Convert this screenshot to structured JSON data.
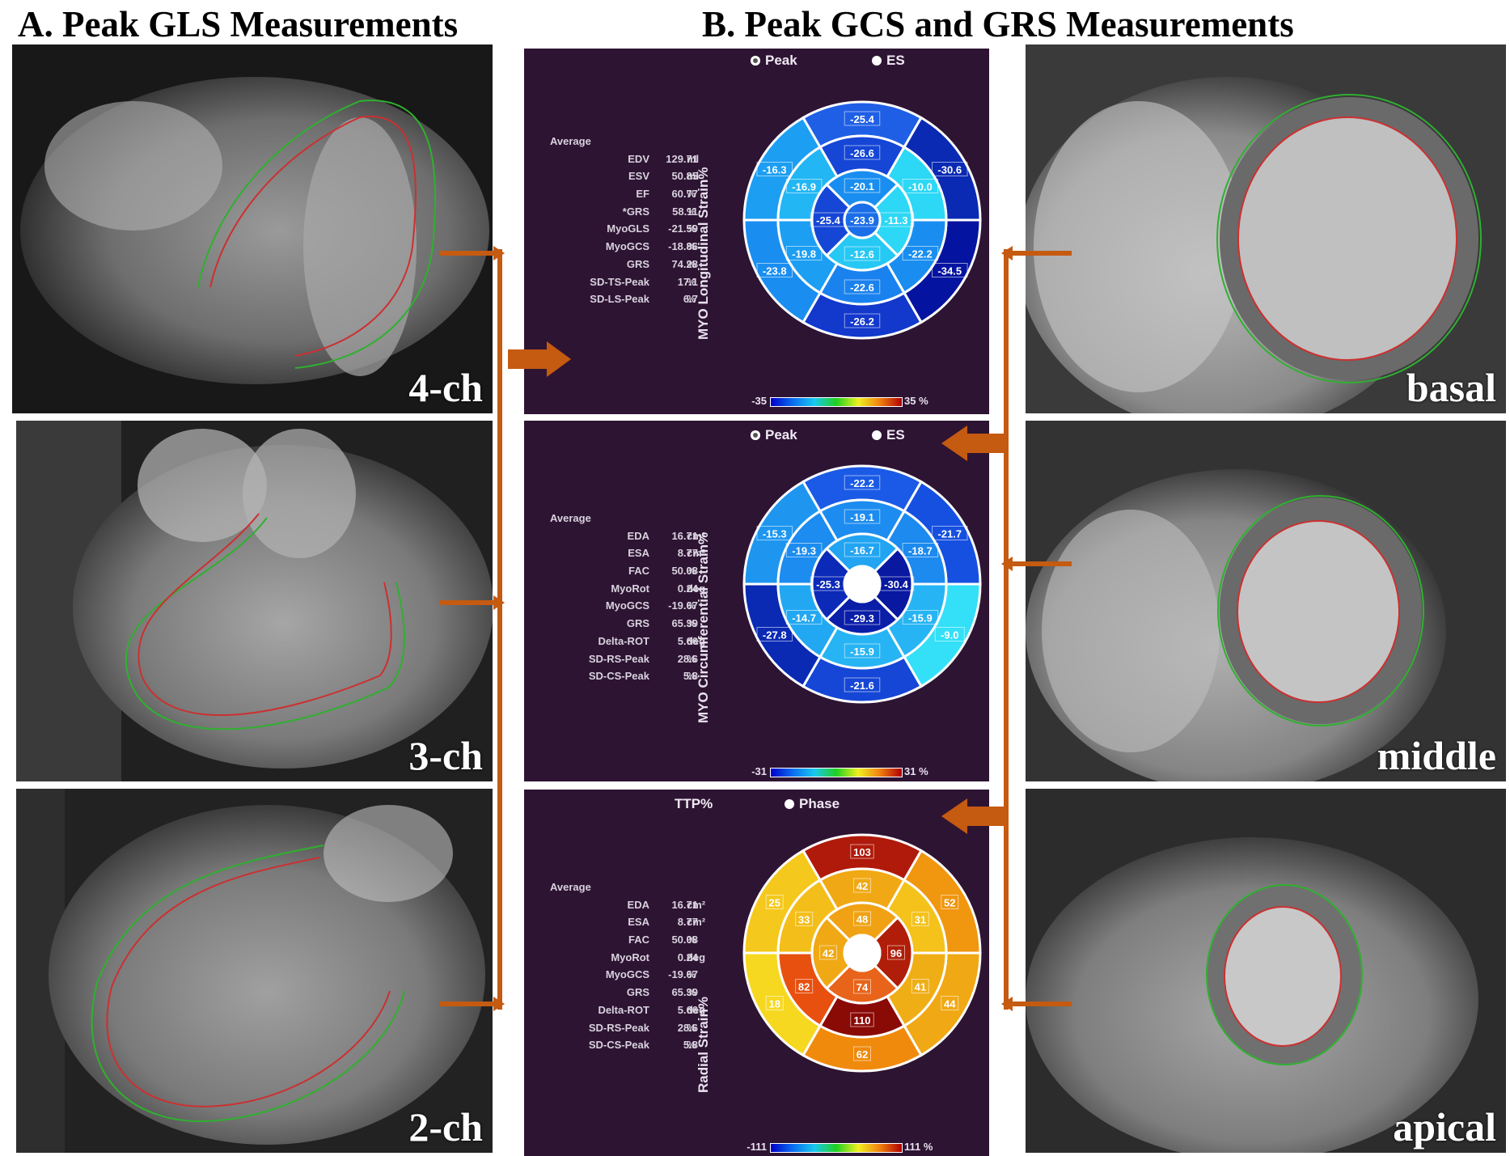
{
  "headings": {
    "a": "A.  Peak GLS Measurements",
    "b": "B.  Peak GCS and GRS Measurements"
  },
  "long_axis_views": [
    {
      "label": "4-ch"
    },
    {
      "label": "3-ch"
    },
    {
      "label": "2-ch"
    }
  ],
  "short_axis_views": [
    {
      "label": "basal"
    },
    {
      "label": "middle"
    },
    {
      "label": "apical"
    }
  ],
  "colors": {
    "panel_background": "#2e1433",
    "arrow": "#c55a11",
    "endocardium_contour": "#d03030",
    "epicardium_contour": "#30b030"
  },
  "panels": [
    {
      "radio": {
        "option1": "Peak",
        "option2": "ES",
        "selected": "Peak"
      },
      "title": "MYO Longitudinal Strain%",
      "stats_header": "Average",
      "stats": [
        {
          "label": "EDV",
          "value": "129.71",
          "unit": "ml"
        },
        {
          "label": "ESV",
          "value": "50.85",
          "unit": "ml"
        },
        {
          "label": "EF",
          "value": "60.77",
          "unit": "%"
        },
        {
          "label": "*GRS",
          "value": "58.11",
          "unit": "%"
        },
        {
          "label": "MyoGLS",
          "value": "-21.59",
          "unit": "%"
        },
        {
          "label": "MyoGCS",
          "value": "-18.86",
          "unit": "%"
        },
        {
          "label": "GRS",
          "value": "74.28",
          "unit": "%"
        },
        {
          "label": "SD-TS-Peak",
          "value": "17.1",
          "unit": "%"
        },
        {
          "label": "SD-LS-Peak",
          "value": "6.7",
          "unit": "%"
        }
      ],
      "scale": {
        "min": "-35",
        "max": "35 %"
      },
      "bullseye": {
        "basal": [
          "-25.4",
          "-30.6",
          "-34.5",
          "-26.2",
          "-23.8",
          "-16.3"
        ],
        "mid": [
          "-26.6",
          "-10.0",
          "-22.2",
          "-22.6",
          "-19.8",
          "-16.9"
        ],
        "apical": [
          "-20.1",
          "-11.3",
          "-12.6",
          "-25.4"
        ],
        "apex": "-23.9",
        "basal_colors": [
          "#1f5fe6",
          "#0a2ab4",
          "#0514a0",
          "#1238cc",
          "#1a8ef0",
          "#1c9ef2"
        ],
        "mid_colors": [
          "#1546d6",
          "#2cd8f5",
          "#1a8ef0",
          "#1a82ee",
          "#1c9ef2",
          "#22b6f4"
        ],
        "apical_colors": [
          "#1a8ef0",
          "#2cd8f5",
          "#26c8f4",
          "#1546d6"
        ],
        "apex_color": "#1a6ee8"
      }
    },
    {
      "radio": {
        "option1": "Peak",
        "option2": "ES",
        "selected": "Peak"
      },
      "title": "MYO Circumferential Strain%",
      "stats_header": "Average",
      "stats": [
        {
          "label": "EDA",
          "value": "16.71",
          "unit": "cm²"
        },
        {
          "label": "ESA",
          "value": "8.77",
          "unit": "cm²"
        },
        {
          "label": "FAC",
          "value": "50.08",
          "unit": "%"
        },
        {
          "label": "MyoRot",
          "value": "0.24",
          "unit": "deg"
        },
        {
          "label": "MyoGCS",
          "value": "-19.67",
          "unit": "%"
        },
        {
          "label": "GRS",
          "value": "65.39",
          "unit": "%"
        },
        {
          "label": "Delta-ROT",
          "value": "5.66",
          "unit": "deg"
        },
        {
          "label": "SD-RS-Peak",
          "value": "28.6",
          "unit": "%"
        },
        {
          "label": "SD-CS-Peak",
          "value": "5.8",
          "unit": "%"
        }
      ],
      "scale": {
        "min": "-31",
        "max": "31 %"
      },
      "bullseye": {
        "basal": [
          "-22.2",
          "-21.7",
          "-9.0",
          "-21.6",
          "-27.8",
          "-15.3"
        ],
        "mid": [
          "-19.1",
          "-18.7",
          "-15.9",
          "-15.9",
          "-14.7",
          "-19.3"
        ],
        "apical": [
          "-16.7",
          "-30.4",
          "-29.3",
          "-25.3"
        ],
        "apex": "",
        "basal_colors": [
          "#1a5ae6",
          "#1650e0",
          "#33e0f8",
          "#1546d6",
          "#0a2ab4",
          "#1e96f0"
        ],
        "mid_colors": [
          "#1c8cf0",
          "#1c8aee",
          "#26b4f4",
          "#26b4f4",
          "#22a8f2",
          "#1c8cf0"
        ],
        "apical_colors": [
          "#22a4f2",
          "#0818a0",
          "#0a1ea8",
          "#0c2ab8"
        ],
        "apex_color": "#ffffff"
      }
    },
    {
      "radio": {
        "option1": "TTP%",
        "option2": "Phase",
        "selected": ""
      },
      "title": "Radial Strain%",
      "stats_header": "Average",
      "stats": [
        {
          "label": "EDA",
          "value": "16.71",
          "unit": "cm²"
        },
        {
          "label": "ESA",
          "value": "8.77",
          "unit": "cm²"
        },
        {
          "label": "FAC",
          "value": "50.08",
          "unit": "%"
        },
        {
          "label": "MyoRot",
          "value": "0.24",
          "unit": "deg"
        },
        {
          "label": "MyoGCS",
          "value": "-19.67",
          "unit": "%"
        },
        {
          "label": "GRS",
          "value": "65.39",
          "unit": "%"
        },
        {
          "label": "Delta-ROT",
          "value": "5.66",
          "unit": "deg"
        },
        {
          "label": "SD-RS-Peak",
          "value": "28.6",
          "unit": "%"
        },
        {
          "label": "SD-CS-Peak",
          "value": "5.8",
          "unit": "%"
        }
      ],
      "scale": {
        "min": "-111",
        "max": "111 %"
      },
      "bullseye": {
        "basal": [
          "103",
          "52",
          "44",
          "62",
          "18",
          "25"
        ],
        "mid": [
          "42",
          "31",
          "41",
          "110",
          "82",
          "33"
        ],
        "apical": [
          "48",
          "96",
          "74",
          "42"
        ],
        "apex": "",
        "basal_colors": [
          "#b01a0a",
          "#f0960f",
          "#f0a814",
          "#f08a0c",
          "#f6d820",
          "#f4c81c"
        ],
        "mid_colors": [
          "#f0a814",
          "#f4c21a",
          "#f0ae16",
          "#8a0a06",
          "#e85010",
          "#f4be1a"
        ],
        "apical_colors": [
          "#f0a214",
          "#b01e0a",
          "#e8641a",
          "#f0a814"
        ],
        "apex_color": "#ffffff"
      }
    }
  ]
}
